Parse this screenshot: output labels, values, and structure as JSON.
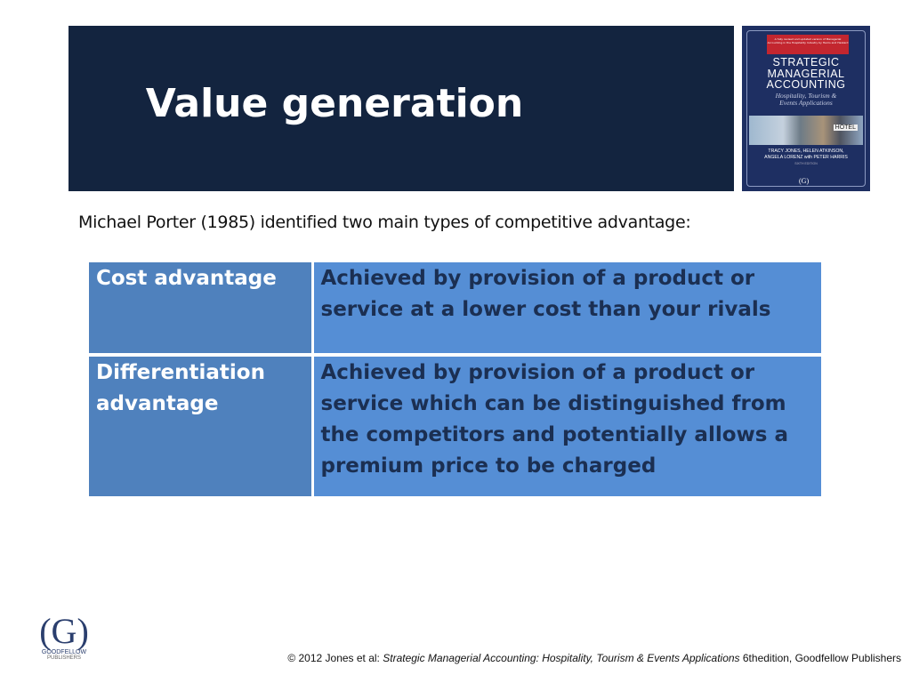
{
  "slide": {
    "title": "Value generation",
    "intro": "Michael Porter (1985) identified two main types of competitive advantage:"
  },
  "table": {
    "rows": [
      {
        "term": "Cost advantage",
        "definition": "Achieved by provision of a product or service at a lower cost than your rivals"
      },
      {
        "term": "Differentiation advantage",
        "definition": "Achieved by provision of a product or service which can be distinguished from the competitors and potentially allows a premium price to be charged"
      }
    ]
  },
  "book_cover": {
    "banner_text": "A fully revised and updated version of Managerial Accounting in the Hospitality Industry by Harris and Hazzard",
    "title_lines": [
      "STRATEGIC",
      "MANAGERIAL",
      "ACCOUNTING"
    ],
    "subtitle_lines": [
      "Hospitality, Tourism &",
      "Events Applications"
    ],
    "sign": "HOTEL",
    "authors_lines": [
      "TRACY JONES, HELEN ATKINSON,",
      "ANGELA LORENZ with PETER HARRIS"
    ],
    "edition": "SIXTH EDITION",
    "logo": "(G)"
  },
  "publisher_logo": {
    "mark": "(G)",
    "name": "GOODFELLOW",
    "sub": "PUBLISHERS"
  },
  "footer": {
    "prefix": "© 2012 Jones et al: ",
    "book": "Strategic Managerial Accounting: Hospitality, Tourism & Events Applications",
    "suffix": " 6thedition, Goodfellow Publishers"
  },
  "colors": {
    "banner": "#13243f",
    "term_cell": "#4f81bd",
    "definition_cell": "#558ed5",
    "definition_text": "#1b2f52"
  }
}
